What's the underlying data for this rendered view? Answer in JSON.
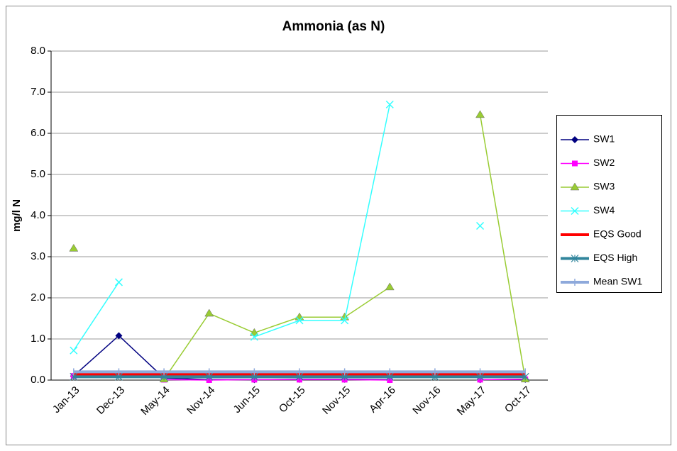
{
  "chart_data": {
    "type": "line",
    "title": "Ammonia (as N)",
    "y_label": "mg/l N",
    "categories": [
      "Jan-13",
      "Dec-13",
      "May-14",
      "Nov-14",
      "Jun-15",
      "Oct-15",
      "Nov-15",
      "Apr-16",
      "Nov-16",
      "May-17",
      "Oct-17"
    ],
    "series": [
      {
        "name": "SW1",
        "color": "#000080",
        "marker": "diamond",
        "values": [
          0.1,
          1.08,
          0.05,
          0.01,
          0.01,
          0.02,
          0.02,
          0.01,
          null,
          0.01,
          0.02
        ]
      },
      {
        "name": "SW2",
        "color": "#ff00ff",
        "marker": "square",
        "values": [
          0.1,
          null,
          0.01,
          0.0,
          0.01,
          0.01,
          0.01,
          0.0,
          null,
          0.01,
          0.02
        ]
      },
      {
        "name": "SW3",
        "color": "#99cc33",
        "marker": "triangle",
        "values": [
          3.2,
          null,
          0.02,
          1.62,
          1.15,
          1.53,
          1.53,
          2.26,
          null,
          6.45,
          0.02
        ]
      },
      {
        "name": "SW4",
        "color": "#33ffff",
        "marker": "x",
        "values": [
          0.72,
          2.38,
          null,
          null,
          1.05,
          1.45,
          1.45,
          6.7,
          null,
          3.75,
          null
        ]
      },
      {
        "name": "EQS Good",
        "color": "#ff0000",
        "marker": "none",
        "width": 4,
        "values": [
          0.14,
          0.14,
          0.14,
          0.14,
          0.14,
          0.14,
          0.14,
          0.14,
          0.14,
          0.14,
          0.14
        ]
      },
      {
        "name": "EQS High",
        "color": "#31859c",
        "marker": "asterisk",
        "width": 4,
        "values": [
          0.08,
          0.08,
          0.08,
          0.08,
          0.08,
          0.08,
          0.08,
          0.08,
          0.08,
          0.08,
          0.08
        ]
      },
      {
        "name": "Mean SW1",
        "color": "#8ea9db",
        "marker": "plus",
        "width": 4,
        "values": [
          0.2,
          0.2,
          0.2,
          0.2,
          0.2,
          0.2,
          0.2,
          0.2,
          0.2,
          0.2,
          0.2
        ]
      }
    ],
    "ylim": [
      0,
      8
    ],
    "yticks": [
      {
        "value": 0,
        "label": "0.0"
      },
      {
        "value": 1,
        "label": "1.0"
      },
      {
        "value": 2,
        "label": "2.0"
      },
      {
        "value": 3,
        "label": "3.0"
      },
      {
        "value": 4,
        "label": "4.0"
      },
      {
        "value": 5,
        "label": "5.0"
      },
      {
        "value": 6,
        "label": "6.0"
      },
      {
        "value": 7,
        "label": "7.0"
      },
      {
        "value": 8,
        "label": "8.0"
      }
    ],
    "grid": true,
    "legend": "right"
  }
}
